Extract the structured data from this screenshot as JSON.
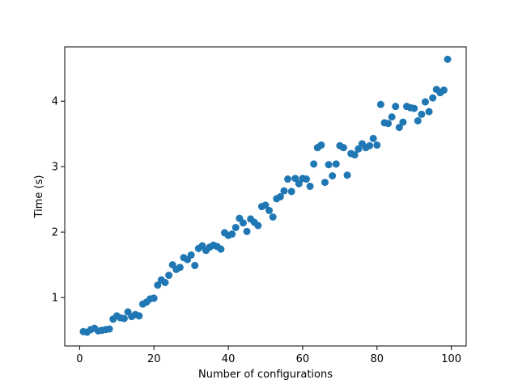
{
  "chart_data": {
    "type": "scatter",
    "title": "",
    "xlabel": "Number of configurations",
    "ylabel": "Time (s)",
    "xlim": [
      -4,
      104
    ],
    "ylim": [
      0.26,
      4.83
    ],
    "xticks": [
      0,
      20,
      40,
      60,
      80,
      100
    ],
    "yticks": [
      1,
      2,
      3,
      4
    ],
    "grid": false,
    "marker_color": "#1f77b4",
    "series": [
      {
        "x": [
          1,
          2,
          3,
          4,
          5,
          6,
          7,
          8,
          9,
          10,
          11,
          12,
          13,
          14,
          15,
          16,
          17,
          18,
          19,
          20,
          21,
          22,
          23,
          24,
          25,
          26,
          27,
          28,
          29,
          30,
          31,
          32,
          33,
          34,
          35,
          36,
          37,
          38,
          39,
          40,
          41,
          42,
          43,
          44,
          45,
          46,
          47,
          48,
          49,
          50,
          51,
          52,
          53,
          54,
          55,
          56,
          57,
          58,
          59,
          60,
          61,
          62,
          63,
          64,
          65,
          66,
          67,
          68,
          69,
          70,
          71,
          72,
          73,
          74,
          75,
          76,
          77,
          78,
          79,
          80,
          81,
          82,
          83,
          84,
          85,
          86,
          87,
          88,
          89,
          90,
          91,
          92,
          93,
          94,
          95,
          96,
          97,
          98,
          99
        ],
        "y": [
          0.48,
          0.47,
          0.51,
          0.53,
          0.49,
          0.5,
          0.51,
          0.52,
          0.67,
          0.72,
          0.69,
          0.68,
          0.78,
          0.71,
          0.74,
          0.72,
          0.9,
          0.93,
          0.98,
          0.99,
          1.19,
          1.27,
          1.23,
          1.34,
          1.5,
          1.43,
          1.46,
          1.61,
          1.58,
          1.65,
          1.49,
          1.75,
          1.79,
          1.72,
          1.77,
          1.8,
          1.78,
          1.74,
          1.99,
          1.95,
          1.97,
          2.07,
          2.21,
          2.14,
          2.01,
          2.2,
          2.15,
          2.1,
          2.39,
          2.41,
          2.33,
          2.23,
          2.51,
          2.54,
          2.63,
          2.81,
          2.62,
          2.82,
          2.74,
          2.82,
          2.81,
          2.7,
          3.04,
          3.29,
          3.33,
          2.76,
          3.03,
          2.86,
          3.04,
          3.32,
          3.29,
          2.87,
          3.2,
          3.18,
          3.27,
          3.35,
          3.29,
          3.32,
          3.43,
          3.33,
          3.95,
          3.67,
          3.66,
          3.76,
          3.92,
          3.6,
          3.68,
          3.92,
          3.9,
          3.89,
          3.7,
          3.8,
          3.99,
          3.84,
          4.05,
          4.18,
          4.13,
          4.17,
          4.64
        ]
      }
    ]
  }
}
